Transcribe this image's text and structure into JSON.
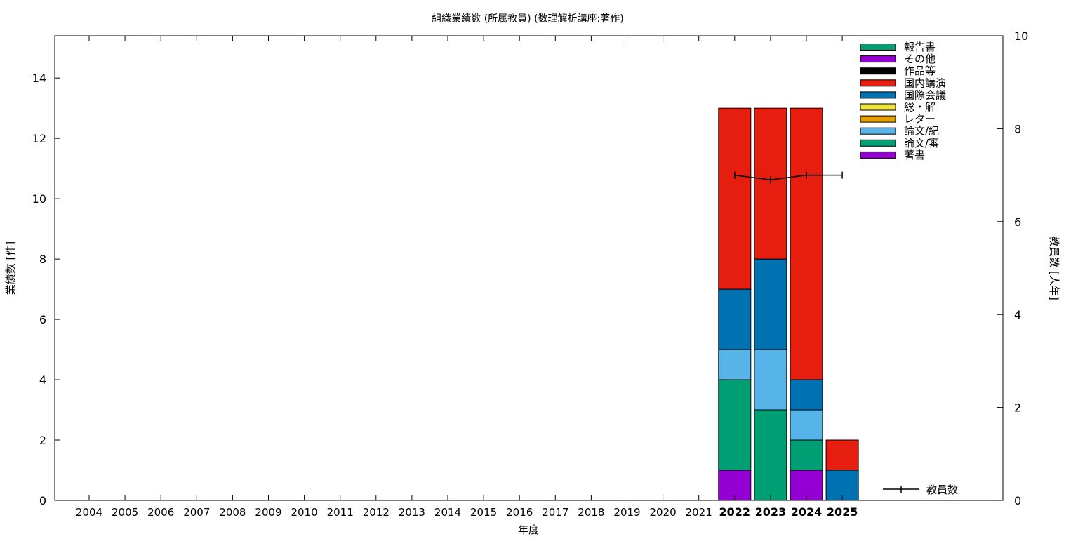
{
  "chart_data": {
    "type": "bar",
    "stacked": true,
    "title": "組織業績数 (所属教員) (数理解析講座:著作)",
    "xlabel": "年度",
    "ylabel": "業績数 [件]",
    "y2label": "教員数 [人年]",
    "ylim": [
      0,
      15.4
    ],
    "y2lim": [
      0,
      10
    ],
    "yticks": [
      0,
      2,
      4,
      6,
      8,
      10,
      12,
      14
    ],
    "y2ticks": [
      0,
      2,
      4,
      6,
      8,
      10
    ],
    "categories": [
      "2004",
      "2005",
      "2006",
      "2007",
      "2008",
      "2009",
      "2010",
      "2011",
      "2012",
      "2013",
      "2014",
      "2015",
      "2016",
      "2017",
      "2018",
      "2019",
      "2020",
      "2021",
      "2022",
      "2023",
      "2024",
      "2025"
    ],
    "bold_categories": [
      "2022",
      "2023",
      "2024",
      "2025"
    ],
    "series": [
      {
        "name": "著書",
        "color": "#9400d3",
        "values": [
          0,
          0,
          0,
          0,
          0,
          0,
          0,
          0,
          0,
          0,
          0,
          0,
          0,
          0,
          0,
          0,
          0,
          0,
          1,
          0,
          1,
          0
        ]
      },
      {
        "name": "論文/審",
        "color": "#009e73",
        "values": [
          0,
          0,
          0,
          0,
          0,
          0,
          0,
          0,
          0,
          0,
          0,
          0,
          0,
          0,
          0,
          0,
          0,
          0,
          3,
          3,
          1,
          0
        ]
      },
      {
        "name": "論文/紀",
        "color": "#56b4e9",
        "values": [
          0,
          0,
          0,
          0,
          0,
          0,
          0,
          0,
          0,
          0,
          0,
          0,
          0,
          0,
          0,
          0,
          0,
          0,
          1,
          2,
          1,
          0
        ]
      },
      {
        "name": "レター",
        "color": "#e69f00",
        "values": [
          0,
          0,
          0,
          0,
          0,
          0,
          0,
          0,
          0,
          0,
          0,
          0,
          0,
          0,
          0,
          0,
          0,
          0,
          0,
          0,
          0,
          0
        ]
      },
      {
        "name": "総・解",
        "color": "#f0e442",
        "values": [
          0,
          0,
          0,
          0,
          0,
          0,
          0,
          0,
          0,
          0,
          0,
          0,
          0,
          0,
          0,
          0,
          0,
          0,
          0,
          0,
          0,
          0
        ]
      },
      {
        "name": "国際会議",
        "color": "#0072b2",
        "values": [
          0,
          0,
          0,
          0,
          0,
          0,
          0,
          0,
          0,
          0,
          0,
          0,
          0,
          0,
          0,
          0,
          0,
          0,
          2,
          3,
          1,
          1
        ]
      },
      {
        "name": "国内講演",
        "color": "#e51e10",
        "values": [
          0,
          0,
          0,
          0,
          0,
          0,
          0,
          0,
          0,
          0,
          0,
          0,
          0,
          0,
          0,
          0,
          0,
          0,
          6,
          5,
          9,
          1
        ]
      },
      {
        "name": "作品等",
        "color": "#000000",
        "values": [
          0,
          0,
          0,
          0,
          0,
          0,
          0,
          0,
          0,
          0,
          0,
          0,
          0,
          0,
          0,
          0,
          0,
          0,
          0,
          0,
          0,
          0
        ]
      },
      {
        "name": "その他",
        "color": "#9400d3",
        "values": [
          0,
          0,
          0,
          0,
          0,
          0,
          0,
          0,
          0,
          0,
          0,
          0,
          0,
          0,
          0,
          0,
          0,
          0,
          0,
          0,
          0,
          0
        ]
      },
      {
        "name": "報告書",
        "color": "#009e73",
        "values": [
          0,
          0,
          0,
          0,
          0,
          0,
          0,
          0,
          0,
          0,
          0,
          0,
          0,
          0,
          0,
          0,
          0,
          0,
          0,
          0,
          0,
          0
        ]
      }
    ],
    "line_series": {
      "name": "教員数",
      "axis": "y2",
      "x": [
        "2022",
        "2023",
        "2024",
        "2025"
      ],
      "values": [
        7.0,
        6.9,
        7.0,
        7.0
      ]
    },
    "legend_position": "top-right",
    "grid": false
  }
}
